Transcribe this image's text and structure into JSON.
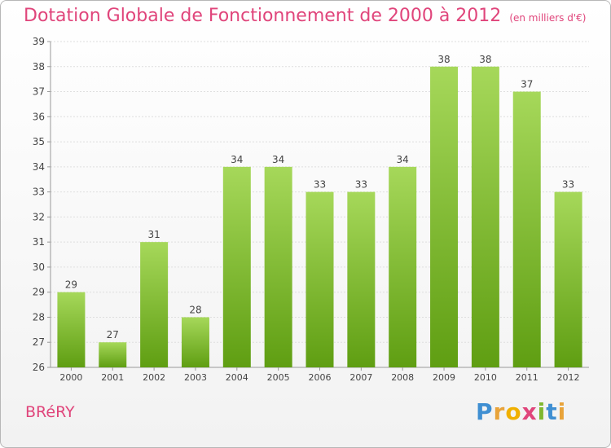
{
  "title": "Dotation Globale de Fonctionnement de 2000 à 2012",
  "subtitle": "(en milliers d'€)",
  "commune": "BRéRY",
  "logo": {
    "letters": [
      "P",
      "r",
      "o",
      "x",
      "i",
      "t",
      "i"
    ],
    "colors": [
      "#3f8fd2",
      "#e8a33a",
      "#f0b000",
      "#e0457b",
      "#7fb72e",
      "#3f8fd2",
      "#e8a33a"
    ]
  },
  "colors": {
    "bar_top": "#a6d85a",
    "bar_bottom": "#5f9e12",
    "title": "#e0457b"
  },
  "chart_data": {
    "type": "bar",
    "title": "Dotation Globale de Fonctionnement de 2000 à 2012",
    "categories": [
      "2000",
      "2001",
      "2002",
      "2003",
      "2004",
      "2005",
      "2006",
      "2007",
      "2008",
      "2009",
      "2010",
      "2011",
      "2012"
    ],
    "values": [
      29,
      27,
      31,
      28,
      34,
      34,
      33,
      33,
      34,
      38,
      38,
      37,
      33
    ],
    "ylim": [
      26,
      39
    ],
    "yticks": [
      26,
      27,
      28,
      29,
      30,
      31,
      32,
      33,
      34,
      35,
      36,
      37,
      38,
      39
    ],
    "grid": true,
    "xlabel": "",
    "ylabel": ""
  }
}
